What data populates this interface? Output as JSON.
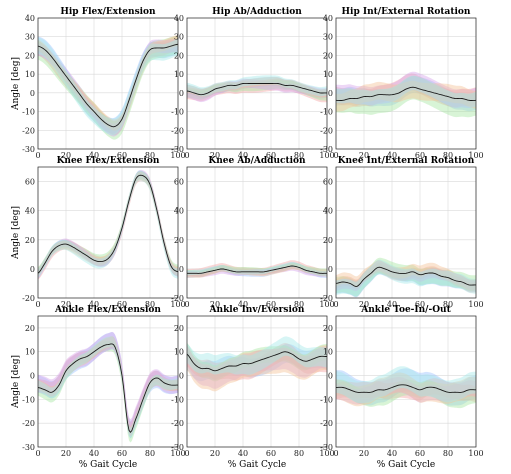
{
  "figure": {
    "xlabel": "% Gait Cycle",
    "ylabel": "Angle [deg]"
  },
  "colors": {
    "mean": "#1a1a1a",
    "bands": [
      "#9ec3ff",
      "#f4a6a6",
      "#a8e6a3",
      "#d7a6ec",
      "#f5c49a",
      "#a6e8e8"
    ]
  },
  "chart_data": [
    {
      "type": "line",
      "title": "Hip Flex/Extension",
      "ylim": [
        -30,
        40
      ],
      "yticks": [
        -30,
        -20,
        -10,
        0,
        10,
        20,
        30,
        40
      ],
      "xlim": [
        0,
        100
      ],
      "xticks": [
        0,
        20,
        40,
        60,
        80,
        100
      ],
      "grid": true,
      "x": [
        0,
        5,
        10,
        15,
        20,
        25,
        30,
        35,
        40,
        45,
        50,
        55,
        60,
        65,
        70,
        75,
        80,
        85,
        90,
        95,
        100
      ],
      "y": [
        25,
        23,
        19,
        14,
        9,
        4,
        -1,
        -6,
        -10,
        -14,
        -17,
        -18,
        -14,
        -4,
        7,
        17,
        23,
        24,
        24,
        25,
        26
      ],
      "spread": 4
    },
    {
      "type": "line",
      "title": "Hip Ab/Adduction",
      "ylim": [
        -30,
        40
      ],
      "yticks": [
        -30,
        -20,
        -10,
        0,
        10,
        20,
        30,
        40
      ],
      "xlim": [
        0,
        100
      ],
      "xticks": [
        0,
        20,
        40,
        60,
        80,
        100
      ],
      "grid": true,
      "x": [
        0,
        5,
        10,
        15,
        20,
        25,
        30,
        35,
        40,
        45,
        50,
        55,
        60,
        65,
        70,
        75,
        80,
        85,
        90,
        95,
        100
      ],
      "y": [
        1,
        0,
        -1,
        0,
        2,
        3,
        4,
        4,
        5,
        5,
        5,
        5,
        5,
        5,
        4,
        4,
        3,
        2,
        1,
        0,
        0
      ],
      "spread": 2.5
    },
    {
      "type": "line",
      "title": "Hip Int/External Rotation",
      "ylim": [
        -30,
        40
      ],
      "yticks": [
        -30,
        -20,
        -10,
        0,
        10,
        20,
        30,
        40
      ],
      "xlim": [
        0,
        100
      ],
      "xticks": [
        0,
        20,
        40,
        60,
        80,
        100
      ],
      "grid": true,
      "x": [
        0,
        5,
        10,
        15,
        20,
        25,
        30,
        35,
        40,
        45,
        50,
        55,
        60,
        65,
        70,
        75,
        80,
        85,
        90,
        95,
        100
      ],
      "y": [
        -4,
        -4,
        -3,
        -3,
        -2,
        -2,
        -1,
        -1,
        -1,
        0,
        2,
        3,
        2,
        1,
        0,
        -1,
        -2,
        -3,
        -3,
        -4,
        -4
      ],
      "spread": 5
    },
    {
      "type": "line",
      "title": "Knee Flex/Extension",
      "ylim": [
        -20,
        70
      ],
      "yticks": [
        -20,
        0,
        20,
        40,
        60
      ],
      "xlim": [
        0,
        100
      ],
      "xticks": [
        0,
        20,
        40,
        60,
        80,
        100
      ],
      "grid": true,
      "x": [
        0,
        5,
        10,
        15,
        20,
        25,
        30,
        35,
        40,
        45,
        50,
        55,
        60,
        65,
        70,
        75,
        80,
        85,
        90,
        95,
        100
      ],
      "y": [
        -3,
        4,
        12,
        16,
        17,
        15,
        12,
        9,
        6,
        5,
        7,
        14,
        28,
        47,
        62,
        64,
        58,
        40,
        18,
        2,
        -2
      ],
      "spread": 3
    },
    {
      "type": "line",
      "title": "Knee Ab/Adduction",
      "ylim": [
        -20,
        70
      ],
      "yticks": [
        -20,
        0,
        20,
        40,
        60
      ],
      "xlim": [
        0,
        100
      ],
      "xticks": [
        0,
        20,
        40,
        60,
        80,
        100
      ],
      "grid": true,
      "x": [
        0,
        5,
        10,
        15,
        20,
        25,
        30,
        35,
        40,
        45,
        50,
        55,
        60,
        65,
        70,
        75,
        80,
        85,
        90,
        95,
        100
      ],
      "y": [
        -3,
        -3,
        -3,
        -2,
        -1,
        0,
        -1,
        -2,
        -2,
        -2,
        -2,
        -2,
        -1,
        0,
        1,
        2,
        1,
        -1,
        -2,
        -3,
        -3
      ],
      "spread": 2
    },
    {
      "type": "line",
      "title": "Knee Int/External Rotation",
      "ylim": [
        -20,
        70
      ],
      "yticks": [
        -20,
        0,
        20,
        40,
        60
      ],
      "xlim": [
        0,
        100
      ],
      "xticks": [
        0,
        20,
        40,
        60,
        80,
        100
      ],
      "grid": true,
      "x": [
        0,
        5,
        10,
        15,
        20,
        25,
        30,
        35,
        40,
        45,
        50,
        55,
        60,
        65,
        70,
        75,
        80,
        85,
        90,
        95,
        100
      ],
      "y": [
        -10,
        -9,
        -10,
        -12,
        -7,
        -3,
        1,
        0,
        -2,
        -3,
        -3,
        -2,
        -4,
        -3,
        -3,
        -5,
        -6,
        -8,
        -9,
        -11,
        -11
      ],
      "spread": 4.5
    },
    {
      "type": "line",
      "title": "Ankle Flex/Extension",
      "ylim": [
        -30,
        25
      ],
      "yticks": [
        -30,
        -20,
        -10,
        0,
        10,
        20
      ],
      "xlim": [
        0,
        100
      ],
      "xticks": [
        0,
        20,
        40,
        60,
        80,
        100
      ],
      "grid": true,
      "x": [
        0,
        5,
        10,
        15,
        20,
        25,
        30,
        35,
        40,
        45,
        50,
        55,
        60,
        65,
        70,
        75,
        80,
        85,
        90,
        95,
        100
      ],
      "y": [
        -5,
        -6,
        -7,
        -4,
        2,
        5,
        7,
        8,
        10,
        12,
        13,
        12,
        0,
        -23,
        -18,
        -10,
        -3,
        -1,
        -3,
        -4,
        -4
      ],
      "spread": 3
    },
    {
      "type": "line",
      "title": "Ankle Inv/Eversion",
      "ylim": [
        -30,
        25
      ],
      "yticks": [
        -30,
        -20,
        -10,
        0,
        10,
        20
      ],
      "xlim": [
        0,
        100
      ],
      "xticks": [
        0,
        20,
        40,
        60,
        80,
        100
      ],
      "grid": true,
      "x": [
        0,
        5,
        10,
        15,
        20,
        25,
        30,
        35,
        40,
        45,
        50,
        55,
        60,
        65,
        70,
        75,
        80,
        85,
        90,
        95,
        100
      ],
      "y": [
        9,
        5,
        3,
        3,
        2,
        3,
        4,
        4,
        5,
        5,
        6,
        7,
        8,
        9,
        10,
        9,
        7,
        6,
        7,
        8,
        8
      ],
      "spread": 4.5
    },
    {
      "type": "line",
      "title": "Ankle Toe-In/-Out",
      "ylim": [
        -30,
        25
      ],
      "yticks": [
        -30,
        -20,
        -10,
        0,
        10,
        20
      ],
      "xlim": [
        0,
        100
      ],
      "xticks": [
        0,
        20,
        40,
        60,
        80,
        100
      ],
      "grid": true,
      "x": [
        0,
        5,
        10,
        15,
        20,
        25,
        30,
        35,
        40,
        45,
        50,
        55,
        60,
        65,
        70,
        75,
        80,
        85,
        90,
        95,
        100
      ],
      "y": [
        -5,
        -5,
        -6,
        -7,
        -7,
        -7,
        -6,
        -6,
        -5,
        -4,
        -4,
        -5,
        -6,
        -5,
        -5,
        -6,
        -7,
        -7,
        -7,
        -6,
        -6
      ],
      "spread": 4.5
    }
  ]
}
